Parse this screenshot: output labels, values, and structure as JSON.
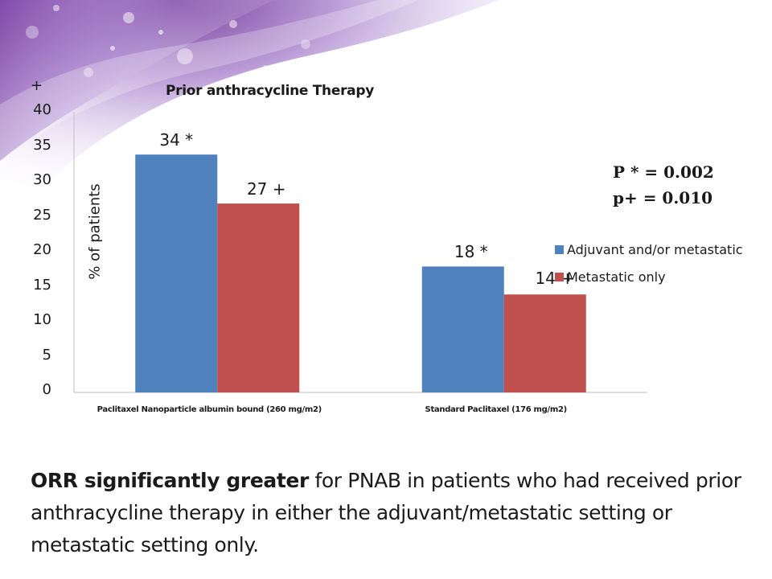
{
  "chart_data": {
    "type": "bar",
    "title": "Prior anthracycline Therapy",
    "ylabel": "% of patients",
    "y_top_mark": "+",
    "ylim": [
      0,
      40
    ],
    "yticks": [
      "0",
      "5",
      "10",
      "15",
      "20",
      "25",
      "30",
      "35",
      "40"
    ],
    "categories": [
      "Paclitaxel Nanoparticle albumin bound (260 mg/m2)",
      "Standard Paclitaxel (176 mg/m2)"
    ],
    "series": [
      {
        "name": "Adjuvant and/or metastatic",
        "color": "#4f81bd",
        "values": [
          34,
          18
        ],
        "labels": [
          "34 *",
          "18 *"
        ]
      },
      {
        "name": "Metastatic only",
        "color": "#c0504d",
        "values": [
          27,
          14
        ],
        "labels": [
          "27 +",
          "14 +"
        ]
      }
    ],
    "legend": "right",
    "grid": false,
    "annotations": [
      "P * = 0.002",
      "p+  = 0.010"
    ]
  },
  "caption": {
    "bold": "ORR significantly greater",
    "rest": " for PNAB in patients who had received prior anthracycline therapy in either the adjuvant/metastatic setting or metastatic setting only."
  }
}
